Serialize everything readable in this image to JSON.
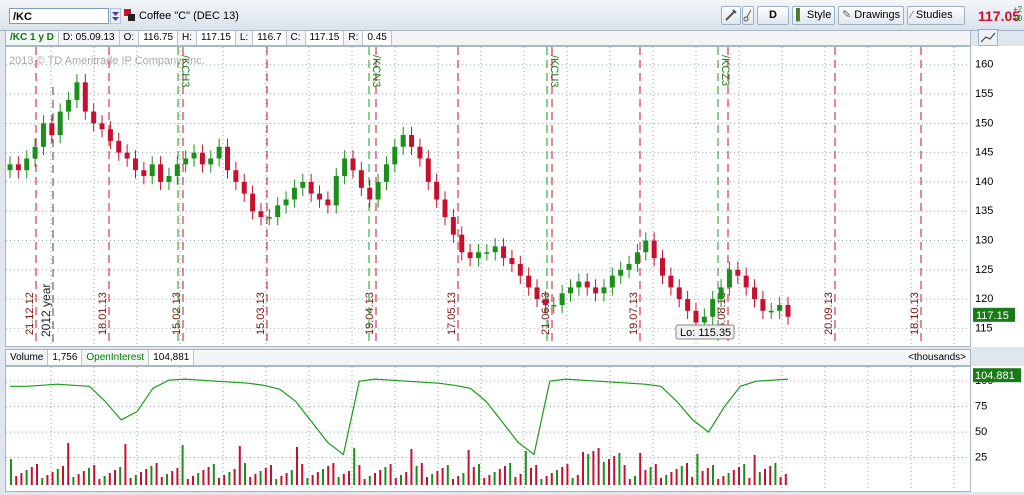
{
  "toolbar": {
    "symbol": "/KC",
    "description": "Coffee \"C\" (DEC 13)",
    "d_label": "D",
    "style_label": "Style",
    "drawings_label": "Drawings",
    "studies_label": "Studies",
    "last_price": "117.05",
    "change_top": "+2",
    "change_bottom": "+0"
  },
  "info_bar": {
    "label": "/KC 1 y D",
    "date": "D: 05.09.13",
    "open_label": "O:",
    "open": "116.75",
    "high_label": "H:",
    "high": "117.15",
    "low_label": "L:",
    "low": "116.7",
    "close_label": "C:",
    "close": "117.15",
    "range_label": "R:",
    "range": "0.45"
  },
  "price_chart": {
    "copyright": "2013 © TD Ameritrade IP Company, Inc.",
    "year_marker": "2012 year",
    "low_label": "Lo: 115.35",
    "current_badge": "117.15",
    "y_ticks": [
      "160",
      "155",
      "150",
      "145",
      "140",
      "135",
      "130",
      "125",
      "120",
      "115"
    ],
    "date_labels": [
      "21.12.12",
      "18.01.13",
      "15.02.13",
      "15.03.13",
      "19.04.13",
      "17.05.13",
      "21.06.13",
      "19.07.13",
      "16.08.13",
      "20.09.13",
      "18.10.13"
    ],
    "contract_labels": [
      "/KCH3",
      "/KCK3",
      "/KCN3",
      "/KCU3",
      "/KCZ3"
    ],
    "colors": {
      "up": "#1a8f1a",
      "down": "#c8102e",
      "expiry_line": "#c8102e",
      "roll_line": "#1a9a1a"
    }
  },
  "volume_panel": {
    "volume_label": "Volume",
    "volume_value": "1,756",
    "oi_label": "OpenInterest",
    "oi_value": "104,881",
    "units": "<thousands>",
    "oi_badge": "104.881",
    "y_ticks": [
      "100",
      "75",
      "50",
      "25"
    ]
  },
  "chart_data": {
    "type": "candlestick",
    "title": "/KC 1 y D",
    "series": [
      {
        "name": "Price",
        "values": [
          143,
          142,
          144,
          146,
          150,
          148,
          152,
          154,
          157,
          152,
          150,
          149,
          147,
          145,
          144,
          142,
          141,
          143,
          140,
          141,
          143,
          144,
          145,
          143,
          144,
          146,
          142,
          140,
          138,
          135,
          134,
          134,
          136,
          137,
          139,
          140,
          138,
          137,
          136,
          141,
          144,
          142,
          139,
          137,
          140,
          143,
          146,
          148,
          146,
          144,
          140,
          137,
          134,
          131,
          128,
          127,
          128,
          128,
          129,
          127,
          126,
          124,
          122,
          120,
          119,
          119,
          121,
          122,
          123,
          122,
          121,
          122,
          124,
          125,
          126,
          128,
          130,
          127,
          124,
          122,
          120,
          118,
          116,
          117,
          120,
          122,
          125,
          124,
          122,
          120,
          118,
          118,
          119,
          117
        ]
      },
      {
        "name": "OpenInterest",
        "values": [
          95,
          95,
          96,
          97,
          96,
          95,
          80,
          62,
          70,
          93,
          101,
          102,
          101,
          100,
          99,
          98,
          96,
          92,
          80,
          60,
          40,
          28,
          100,
          102,
          101,
          100,
          99,
          98,
          96,
          93,
          80,
          60,
          40,
          28,
          100,
          102,
          101,
          100,
          99,
          98,
          97,
          95,
          80,
          62,
          50,
          75,
          95,
          100,
          101,
          102
        ]
      }
    ],
    "ylim": [
      112,
      162
    ]
  }
}
